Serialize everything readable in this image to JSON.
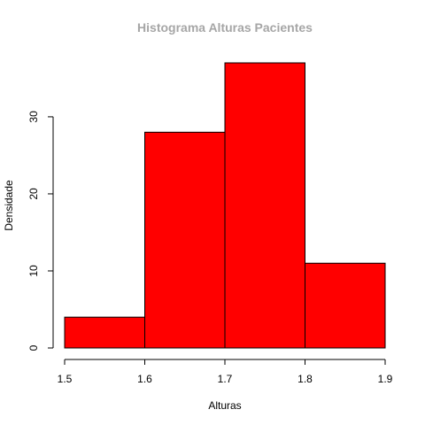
{
  "chart_data": {
    "type": "bar",
    "title": "Histograma Alturas Pacientes",
    "xlabel": "Alturas",
    "ylabel": "Densidade",
    "bins": [
      {
        "start": 1.5,
        "end": 1.6,
        "value": 4
      },
      {
        "start": 1.6,
        "end": 1.7,
        "value": 28
      },
      {
        "start": 1.7,
        "end": 1.8,
        "value": 37
      },
      {
        "start": 1.8,
        "end": 1.9,
        "value": 11
      }
    ],
    "x_ticks": [
      "1.5",
      "1.6",
      "1.7",
      "1.8",
      "1.9"
    ],
    "y_ticks": [
      "0",
      "10",
      "20",
      "30"
    ],
    "xlim": [
      1.5,
      1.9
    ],
    "ylim": [
      0,
      37
    ],
    "grid": false,
    "bar_color": "#ff0000",
    "title_color": "#a6a6a6"
  }
}
